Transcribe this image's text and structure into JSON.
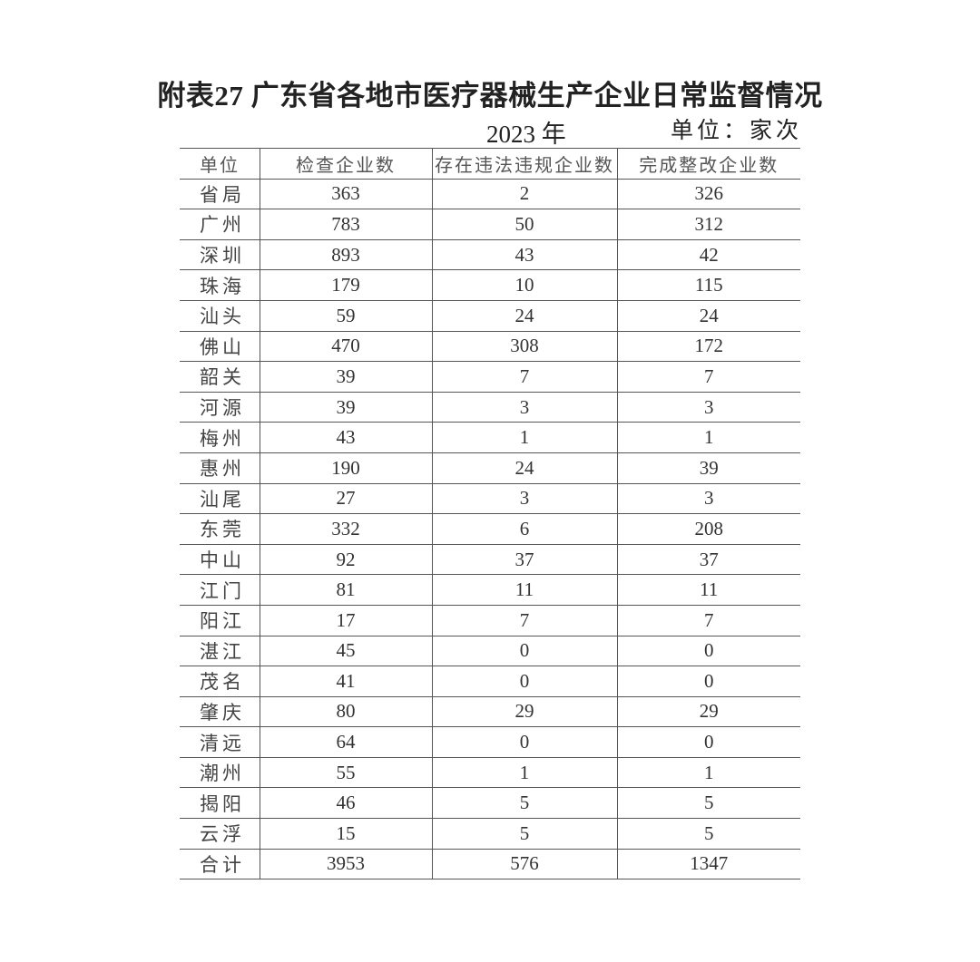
{
  "title": "附表27 广东省各地市医疗器械生产企业日常监督情况",
  "year": "2023 年",
  "unit": "单位：家次",
  "table": {
    "headers": [
      "单位",
      "检查企业数",
      "存在违法违规企业数",
      "完成整改企业数"
    ],
    "rows": [
      [
        "省局",
        "363",
        "2",
        "326"
      ],
      [
        "广州",
        "783",
        "50",
        "312"
      ],
      [
        "深圳",
        "893",
        "43",
        "42"
      ],
      [
        "珠海",
        "179",
        "10",
        "115"
      ],
      [
        "汕头",
        "59",
        "24",
        "24"
      ],
      [
        "佛山",
        "470",
        "308",
        "172"
      ],
      [
        "韶关",
        "39",
        "7",
        "7"
      ],
      [
        "河源",
        "39",
        "3",
        "3"
      ],
      [
        "梅州",
        "43",
        "1",
        "1"
      ],
      [
        "惠州",
        "190",
        "24",
        "39"
      ],
      [
        "汕尾",
        "27",
        "3",
        "3"
      ],
      [
        "东莞",
        "332",
        "6",
        "208"
      ],
      [
        "中山",
        "92",
        "37",
        "37"
      ],
      [
        "江门",
        "81",
        "11",
        "11"
      ],
      [
        "阳江",
        "17",
        "7",
        "7"
      ],
      [
        "湛江",
        "45",
        "0",
        "0"
      ],
      [
        "茂名",
        "41",
        "0",
        "0"
      ],
      [
        "肇庆",
        "80",
        "29",
        "29"
      ],
      [
        "清远",
        "64",
        "0",
        "0"
      ],
      [
        "潮州",
        "55",
        "1",
        "1"
      ],
      [
        "揭阳",
        "46",
        "5",
        "5"
      ],
      [
        "云浮",
        "15",
        "5",
        "5"
      ],
      [
        "合计",
        "3953",
        "576",
        "1347"
      ]
    ]
  }
}
